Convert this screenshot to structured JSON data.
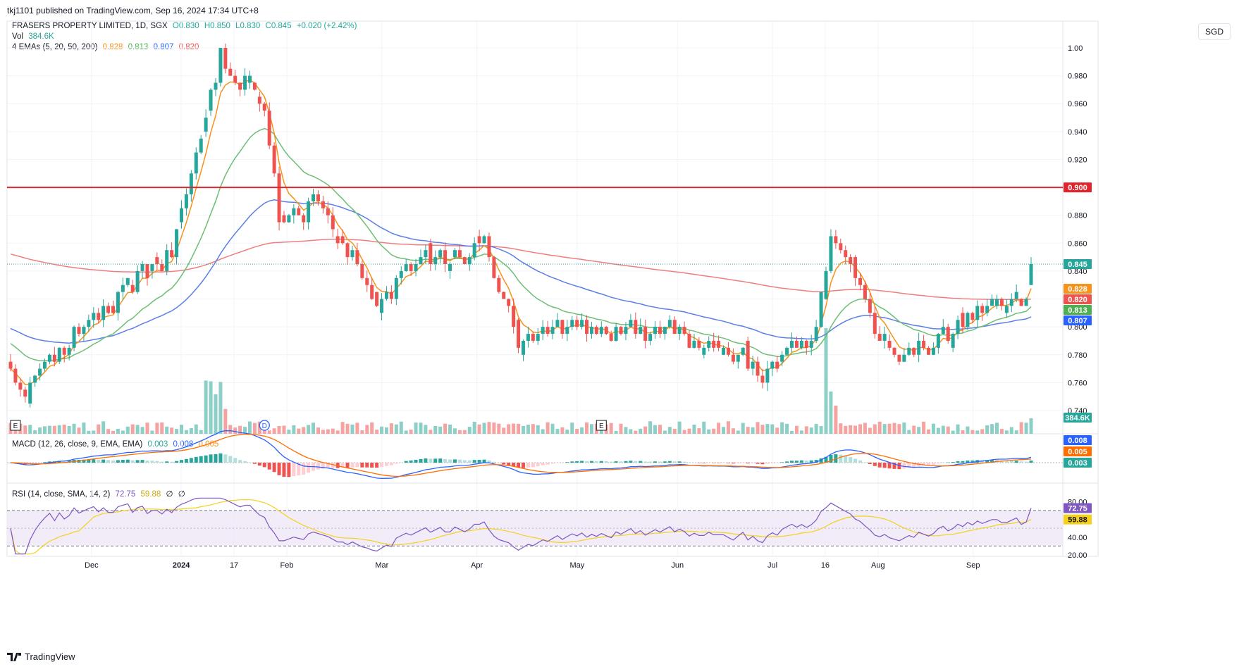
{
  "header": {
    "published": "tkj1101 published on TradingView.com, Sep 16, 2024 17:34 UTC+8"
  },
  "currency_button": "SGD",
  "brand": "TradingView",
  "legend": {
    "symbol": "FRASERS PROPERTY LIMITED, 1D, SGX",
    "o": "O0.830",
    "h": "H0.850",
    "l": "L0.830",
    "c": "C0.845",
    "chg": "+0.020 (+2.42%)",
    "vol_label": "Vol",
    "vol_value": "384.6K",
    "ema_label": "4 EMAs (5, 20, 50, 200)",
    "ema5": "0.828",
    "ema20": "0.813",
    "ema50": "0.807",
    "ema200": "0.820",
    "macd_label": "MACD (12, 26, close, 9, EMA, EMA)",
    "macd_hist": "0.003",
    "macd_line": "0.008",
    "macd_signal": "0.005",
    "rsi_label": "RSI (14, close, SMA, 14, 2)",
    "rsi_val": "72.75",
    "rsi_ma": "59.88",
    "rsi_x1": "∅",
    "rsi_x2": "∅"
  },
  "colors": {
    "up": "#26a69a",
    "down": "#ef5350",
    "ema5": "#f7931a",
    "ema20": "#6dbf73",
    "ema50": "#5b7fe8",
    "ema200": "#ef7f7f",
    "resistance": "#e0262c",
    "rsi": "#7e57c2",
    "rsi_ma": "#f5d11c"
  },
  "chart_data": {
    "type": "candlestick",
    "symbol": "FRASERS PROPERTY LIMITED",
    "interval": "1D",
    "exchange": "SGX",
    "currency": "SGD",
    "ohlc_last": {
      "open": 0.83,
      "high": 0.85,
      "low": 0.83,
      "close": 0.845,
      "change": 0.02,
      "change_pct": 2.42
    },
    "volume_last": "384.6K",
    "price_axis_ticks": [
      "1.00",
      "0.980",
      "0.960",
      "0.940",
      "0.920",
      "0.900",
      "0.880",
      "0.860",
      "0.840",
      "0.820",
      "0.800",
      "0.780",
      "0.760",
      "0.740"
    ],
    "price_range": [
      0.733,
      1.003
    ],
    "time_axis_labels": [
      "Dec",
      "2024",
      "17",
      "Feb",
      "Mar",
      "Apr",
      "May",
      "Jun",
      "Jul",
      "16",
      "Aug",
      "Sep"
    ],
    "horizontal_line": {
      "value": 0.9,
      "label": "0.900"
    },
    "last_price_line": {
      "value": 0.845,
      "label": "0.845"
    },
    "price_labels": [
      {
        "label": "0.845",
        "value": 0.845,
        "color": "#26a69a"
      },
      {
        "label": "0.828",
        "value": 0.828,
        "color": "#f7931a"
      },
      {
        "label": "0.820",
        "value": 0.82,
        "color": "#ef5350"
      },
      {
        "label": "0.813",
        "value": 0.813,
        "color": "#4caf50"
      },
      {
        "label": "0.807",
        "value": 0.807,
        "color": "#2962ff"
      }
    ],
    "volume_label": "384.6K",
    "event_markers": [
      {
        "label": "E",
        "index": 1
      },
      {
        "label": "D",
        "index": 52
      },
      {
        "label": "E",
        "index": 121
      }
    ],
    "macd": {
      "values": {
        "hist": 0.003,
        "macd": 0.008,
        "signal": 0.005
      },
      "labels": [
        "0.008",
        "0.005",
        "0.003"
      ]
    },
    "rsi": {
      "value": 72.75,
      "ma": 59.88,
      "ticks": [
        "80.00",
        "40.00",
        "20.00"
      ],
      "bands": [
        70,
        30
      ],
      "mid": 50,
      "range": [
        20,
        85
      ]
    },
    "key_points": [
      {
        "index": 0,
        "price": 0.775
      },
      {
        "index": 2,
        "price": 0.75
      },
      {
        "index": 17,
        "price": 0.81
      },
      {
        "index": 33,
        "price": 0.855
      },
      {
        "index": 43,
        "price": 0.995
      },
      {
        "index": 52,
        "price": 0.96
      },
      {
        "index": 55,
        "price": 0.88
      },
      {
        "index": 63,
        "price": 0.89
      },
      {
        "index": 75,
        "price": 0.815
      },
      {
        "index": 82,
        "price": 0.845
      },
      {
        "index": 97,
        "price": 0.858
      },
      {
        "index": 104,
        "price": 0.79
      },
      {
        "index": 118,
        "price": 0.8
      },
      {
        "index": 140,
        "price": 0.79
      },
      {
        "index": 155,
        "price": 0.77
      },
      {
        "index": 165,
        "price": 0.8
      },
      {
        "index": 168,
        "price": 0.87
      },
      {
        "index": 175,
        "price": 0.815
      },
      {
        "index": 180,
        "price": 0.78
      },
      {
        "index": 190,
        "price": 0.79
      },
      {
        "index": 200,
        "price": 0.815
      },
      {
        "index": 208,
        "price": 0.82
      },
      {
        "index": 209,
        "price": 0.845
      }
    ]
  }
}
